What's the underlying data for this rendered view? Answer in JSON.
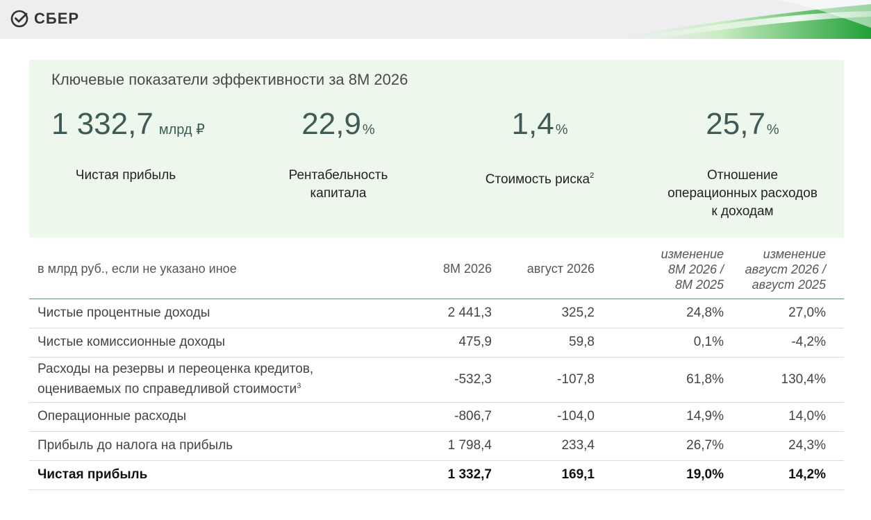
{
  "header": {
    "logo_text": "СБЕР",
    "logo_icon": "sber-check-circle-icon",
    "accent_color": "#21a038"
  },
  "kpi": {
    "heading": "Ключевые показатели эффективности за 8М 2026",
    "items": [
      {
        "value": "1 332,7",
        "unit": "млрд ₽",
        "label_lines": [
          "Чистая прибыль"
        ]
      },
      {
        "value": "22,9",
        "unit": "%",
        "label_lines": [
          "Рентабельность",
          "капитала"
        ]
      },
      {
        "value": "1,4",
        "unit": "%",
        "label_lines": [
          "Стоимость риска"
        ],
        "footnote": "2"
      },
      {
        "value": "25,7",
        "unit": "%",
        "label_lines": [
          "Отношение",
          "операционных расходов",
          "к доходам"
        ]
      }
    ]
  },
  "table": {
    "columns": {
      "label": "в млрд руб., если не указано иное",
      "col1": "8М 2026",
      "col2": "август 2026",
      "col3": [
        "изменение",
        "8М 2026 /",
        "8М 2025"
      ],
      "col4": [
        "изменение",
        "август 2026 /",
        "август 2025"
      ]
    },
    "rows": [
      {
        "label": "Чистые процентные доходы",
        "values": [
          "2 441,3",
          "325,2",
          "24,8%",
          "27,0%"
        ]
      },
      {
        "label": "Чистые комиссионные доходы",
        "values": [
          "475,9",
          "59,8",
          "0,1%",
          "-4,2%"
        ]
      },
      {
        "label_lines": [
          "Расходы на резервы и переоценка кредитов,",
          "оцениваемых по справедливой стоимости"
        ],
        "footnote": "3",
        "values": [
          "-532,3",
          "-107,8",
          "61,8%",
          "130,4%"
        ]
      },
      {
        "label": "Операционные расходы",
        "values": [
          "-806,7",
          "-104,0",
          "14,9%",
          "14,0%"
        ]
      },
      {
        "label": "Прибыль до налога на прибыль",
        "values": [
          "1 798,4",
          "233,4",
          "26,7%",
          "24,3%"
        ]
      },
      {
        "label": "Чистая прибыль",
        "values": [
          "1 332,7",
          "169,1",
          "19,0%",
          "14,2%"
        ]
      }
    ]
  }
}
